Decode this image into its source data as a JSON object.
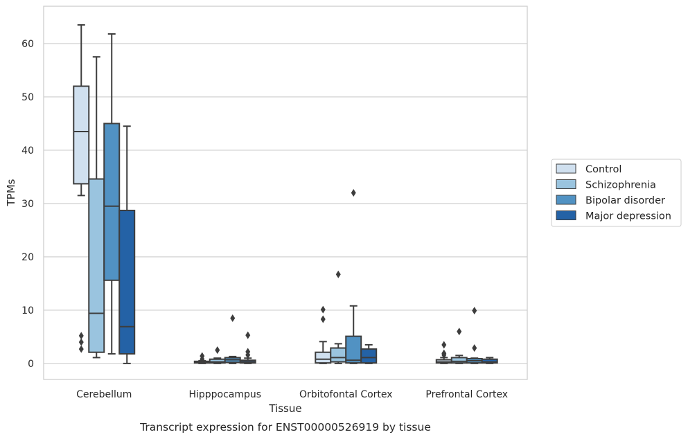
{
  "chart_data": {
    "type": "boxplot",
    "caption": "Transcript expression for ENST00000526919 by tissue",
    "xlabel": "Tissue",
    "ylabel": "TPMs",
    "ylim": [
      -3,
      67
    ],
    "yticks": [
      0,
      10,
      20,
      30,
      40,
      50,
      60
    ],
    "grid": "horizontal",
    "legend_position": "right",
    "categories": [
      "Cerebellum",
      "Hipppocampus",
      "Orbitofontal Cortex",
      "Prefrontal Cortex"
    ],
    "series": [
      {
        "name": "Control",
        "color": "#d0e0ef",
        "boxes": [
          {
            "whisker_low": 31.5,
            "q1": 33.7,
            "median": 43.5,
            "q3": 52.0,
            "whisker_high": 63.5,
            "outliers": [
              5.2,
              4.0,
              2.7
            ]
          },
          {
            "whisker_low": 0.0,
            "q1": 0.1,
            "median": 0.2,
            "q3": 0.4,
            "whisker_high": 0.5,
            "outliers": [
              1.4,
              0.8
            ]
          },
          {
            "whisker_low": 0.0,
            "q1": 0.1,
            "median": 0.8,
            "q3": 2.1,
            "whisker_high": 4.1,
            "outliers": [
              10.1,
              8.3
            ]
          },
          {
            "whisker_low": 0.0,
            "q1": 0.1,
            "median": 0.3,
            "q3": 0.7,
            "whisker_high": 1.1,
            "outliers": [
              3.5,
              1.9,
              1.6
            ]
          }
        ]
      },
      {
        "name": "Schizophrenia",
        "color": "#9ac4df",
        "boxes": [
          {
            "whisker_low": 1.1,
            "q1": 2.1,
            "median": 9.4,
            "q3": 34.6,
            "whisker_high": 57.5,
            "outliers": []
          },
          {
            "whisker_low": 0.0,
            "q1": 0.1,
            "median": 0.3,
            "q3": 0.8,
            "whisker_high": 1.0,
            "outliers": [
              2.5
            ]
          },
          {
            "whisker_low": 0.0,
            "q1": 0.3,
            "median": 1.1,
            "q3": 2.9,
            "whisker_high": 3.7,
            "outliers": [
              16.7
            ]
          },
          {
            "whisker_low": 0.0,
            "q1": 0.1,
            "median": 0.4,
            "q3": 1.1,
            "whisker_high": 1.5,
            "outliers": [
              6.0
            ]
          }
        ]
      },
      {
        "name": "Bipolar disorder",
        "color": "#5192c3",
        "boxes": [
          {
            "whisker_low": 1.8,
            "q1": 15.6,
            "median": 29.5,
            "q3": 45.0,
            "whisker_high": 61.8,
            "outliers": []
          },
          {
            "whisker_low": 0.0,
            "q1": 0.2,
            "median": 0.7,
            "q3": 1.1,
            "whisker_high": 1.3,
            "outliers": [
              8.5
            ]
          },
          {
            "whisker_low": 0.0,
            "q1": 0.1,
            "median": 0.6,
            "q3": 5.1,
            "whisker_high": 10.8,
            "outliers": [
              32.0
            ]
          },
          {
            "whisker_low": 0.0,
            "q1": 0.1,
            "median": 0.5,
            "q3": 0.9,
            "whisker_high": 1.0,
            "outliers": [
              9.9,
              2.9
            ]
          }
        ]
      },
      {
        "name": "Major depression",
        "color": "#2462a6",
        "boxes": [
          {
            "whisker_low": 0.0,
            "q1": 1.8,
            "median": 6.9,
            "q3": 28.7,
            "whisker_high": 44.5,
            "outliers": []
          },
          {
            "whisker_low": 0.0,
            "q1": 0.1,
            "median": 0.3,
            "q3": 0.6,
            "whisker_high": 1.0,
            "outliers": [
              5.3,
              2.2,
              1.6
            ]
          },
          {
            "whisker_low": 0.0,
            "q1": 0.1,
            "median": 1.1,
            "q3": 2.7,
            "whisker_high": 3.5,
            "outliers": []
          },
          {
            "whisker_low": 0.0,
            "q1": 0.1,
            "median": 0.3,
            "q3": 0.8,
            "whisker_high": 1.1,
            "outliers": []
          }
        ]
      }
    ]
  }
}
